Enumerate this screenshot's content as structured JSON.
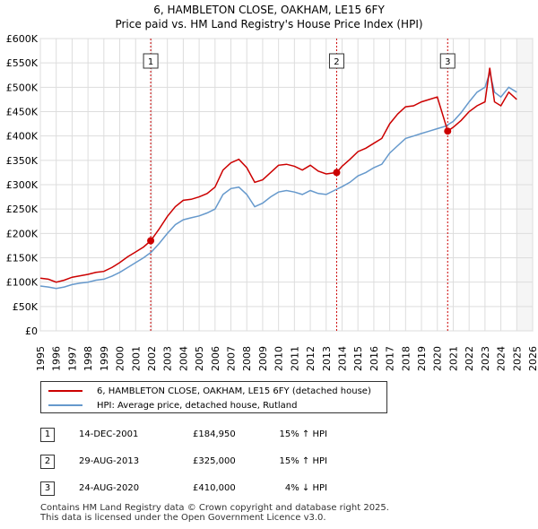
{
  "title_line1": "6, HAMBLETON CLOSE, OAKHAM, LE15 6FY",
  "title_line2": "Price paid vs. HM Land Registry's House Price Index (HPI)",
  "colors": {
    "property": "#cc0000",
    "hpi": "#6699cc",
    "grid": "#dddddd",
    "marker": "#cc0000",
    "vline": "#cc0000"
  },
  "chart_data": {
    "type": "line",
    "title": "Price paid vs. HM Land Registry's House Price Index (HPI)",
    "xlabel": "",
    "ylabel": "",
    "xlim": [
      1995,
      2026
    ],
    "ylim": [
      0,
      600000
    ],
    "x_ticks": [
      "1995",
      "1996",
      "1997",
      "1998",
      "1999",
      "2000",
      "2001",
      "2002",
      "2003",
      "2004",
      "2005",
      "2006",
      "2007",
      "2008",
      "2009",
      "2010",
      "2011",
      "2012",
      "2013",
      "2014",
      "2015",
      "2016",
      "2017",
      "2018",
      "2019",
      "2020",
      "2021",
      "2022",
      "2023",
      "2024",
      "2025",
      "2026"
    ],
    "y_ticks": [
      {
        "value": 0,
        "label": "£0"
      },
      {
        "value": 50000,
        "label": "£50K"
      },
      {
        "value": 100000,
        "label": "£100K"
      },
      {
        "value": 150000,
        "label": "£150K"
      },
      {
        "value": 200000,
        "label": "£200K"
      },
      {
        "value": 250000,
        "label": "£250K"
      },
      {
        "value": 300000,
        "label": "£300K"
      },
      {
        "value": 350000,
        "label": "£350K"
      },
      {
        "value": 400000,
        "label": "£400K"
      },
      {
        "value": 450000,
        "label": "£450K"
      },
      {
        "value": 500000,
        "label": "£500K"
      },
      {
        "value": 550000,
        "label": "£550K"
      },
      {
        "value": 600000,
        "label": "£600K"
      }
    ],
    "series": [
      {
        "name": "6, HAMBLETON CLOSE, OAKHAM, LE15 6FY (detached house)",
        "color": "#cc0000",
        "x": [
          1995.0,
          1995.5,
          1996.0,
          1996.5,
          1997.0,
          1997.5,
          1998.0,
          1998.5,
          1999.0,
          1999.5,
          2000.0,
          2000.5,
          2001.0,
          2001.5,
          2001.95,
          2002.5,
          2003.0,
          2003.5,
          2004.0,
          2004.5,
          2005.0,
          2005.5,
          2006.0,
          2006.5,
          2007.0,
          2007.5,
          2008.0,
          2008.5,
          2009.0,
          2009.5,
          2010.0,
          2010.5,
          2011.0,
          2011.5,
          2012.0,
          2012.5,
          2013.0,
          2013.66,
          2014.0,
          2014.5,
          2015.0,
          2015.5,
          2016.0,
          2016.5,
          2017.0,
          2017.5,
          2018.0,
          2018.5,
          2019.0,
          2019.5,
          2020.0,
          2020.65,
          2021.0,
          2021.5,
          2022.0,
          2022.5,
          2023.0,
          2023.3,
          2023.6,
          2024.0,
          2024.5,
          2025.0
        ],
        "values": [
          108000,
          106000,
          100000,
          104000,
          110000,
          113000,
          116000,
          120000,
          122000,
          130000,
          140000,
          152000,
          162000,
          172000,
          184950,
          210000,
          235000,
          255000,
          268000,
          270000,
          275000,
          282000,
          295000,
          330000,
          345000,
          352000,
          335000,
          305000,
          310000,
          325000,
          340000,
          342000,
          338000,
          330000,
          340000,
          328000,
          322000,
          325000,
          338000,
          352000,
          368000,
          375000,
          385000,
          395000,
          425000,
          445000,
          460000,
          462000,
          470000,
          475000,
          480000,
          410000,
          418000,
          432000,
          450000,
          462000,
          470000,
          540000,
          470000,
          462000,
          490000,
          475000
        ]
      },
      {
        "name": "HPI: Average price, detached house, Rutland",
        "color": "#6699cc",
        "x": [
          1995.0,
          1995.5,
          1996.0,
          1996.5,
          1997.0,
          1997.5,
          1998.0,
          1998.5,
          1999.0,
          1999.5,
          2000.0,
          2000.5,
          2001.0,
          2001.5,
          2002.0,
          2002.5,
          2003.0,
          2003.5,
          2004.0,
          2004.5,
          2005.0,
          2005.5,
          2006.0,
          2006.5,
          2007.0,
          2007.5,
          2008.0,
          2008.5,
          2009.0,
          2009.5,
          2010.0,
          2010.5,
          2011.0,
          2011.5,
          2012.0,
          2012.5,
          2013.0,
          2013.5,
          2014.0,
          2014.5,
          2015.0,
          2015.5,
          2016.0,
          2016.5,
          2017.0,
          2017.5,
          2018.0,
          2018.5,
          2019.0,
          2019.5,
          2020.0,
          2020.5,
          2021.0,
          2021.5,
          2022.0,
          2022.5,
          2023.0,
          2023.3,
          2023.6,
          2024.0,
          2024.5,
          2025.0
        ],
        "values": [
          92000,
          90000,
          87000,
          90000,
          95000,
          98000,
          100000,
          104000,
          106000,
          112000,
          120000,
          130000,
          140000,
          150000,
          162000,
          180000,
          200000,
          218000,
          228000,
          232000,
          236000,
          242000,
          250000,
          280000,
          292000,
          295000,
          280000,
          255000,
          262000,
          275000,
          285000,
          288000,
          285000,
          280000,
          288000,
          282000,
          280000,
          288000,
          296000,
          305000,
          318000,
          325000,
          335000,
          342000,
          365000,
          380000,
          395000,
          400000,
          405000,
          410000,
          415000,
          420000,
          430000,
          448000,
          470000,
          490000,
          500000,
          530000,
          490000,
          480000,
          500000,
          490000
        ]
      }
    ],
    "sales": [
      {
        "marker": "1",
        "x": 2001.95,
        "value": 184950
      },
      {
        "marker": "2",
        "x": 2013.66,
        "value": 325000
      },
      {
        "marker": "3",
        "x": 2020.65,
        "value": 410000
      }
    ]
  },
  "legend": {
    "property_label": "6, HAMBLETON CLOSE, OAKHAM, LE15 6FY (detached house)",
    "hpi_label": "HPI: Average price, detached house, Rutland"
  },
  "sales_table": [
    {
      "marker": "1",
      "date": "14-DEC-2001",
      "price": "£184,950",
      "hpi": "15% ↑ HPI"
    },
    {
      "marker": "2",
      "date": "29-AUG-2013",
      "price": "£325,000",
      "hpi": "15% ↑ HPI"
    },
    {
      "marker": "3",
      "date": "24-AUG-2020",
      "price": "£410,000",
      "hpi": "4% ↓ HPI"
    }
  ],
  "footer": {
    "line1": "Contains HM Land Registry data © Crown copyright and database right 2025.",
    "line2": "This data is licensed under the Open Government Licence v3.0."
  }
}
